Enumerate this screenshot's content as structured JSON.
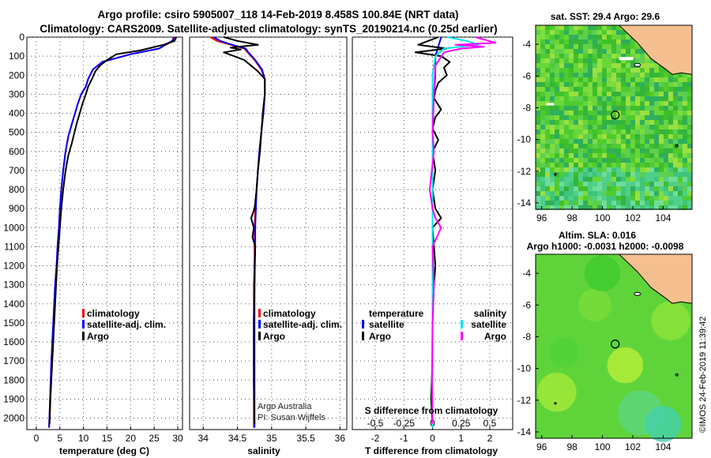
{
  "header": {
    "line1": "Argo profile: csiro 5905007_118 14-Feb-2019 8.458S 100.84E (NRT data)",
    "line2": "Climatology: CARS2009. Satellite-adjusted climatology: synTS_20190214.nc (0.25d earlier)"
  },
  "colors": {
    "climatology": "#ff0000",
    "satellite": "#0000ff",
    "argo": "#000000",
    "sat_salinity": "#00e5ee",
    "argo_salinity_diff": "#ff00ff"
  },
  "chart_data": [
    {
      "type": "line",
      "panel": "temperature",
      "xlabel": "temperature (deg C)",
      "xlim": [
        -2,
        31
      ],
      "ylim": [
        2060,
        0
      ],
      "xticks": [
        0,
        5,
        10,
        15,
        20,
        25,
        30
      ],
      "yticks": [
        0,
        100,
        200,
        300,
        400,
        500,
        600,
        700,
        800,
        900,
        1000,
        1100,
        1200,
        1300,
        1400,
        1500,
        1600,
        1700,
        1800,
        1900,
        2000
      ],
      "legend": [
        "climatology",
        "satellite-adj. clim.",
        "Argo"
      ],
      "series": [
        {
          "name": "climatology",
          "x": [
            29.5,
            29,
            26,
            20,
            14,
            12,
            11,
            10.5,
            9.5,
            8.8,
            8.2,
            7.5,
            6.8,
            6.2,
            5.7,
            5.3,
            5,
            4.8,
            4.5,
            4.3,
            4,
            3.8,
            3.6,
            3.4,
            3.2,
            3,
            2.7
          ],
          "y": [
            0,
            20,
            60,
            90,
            130,
            170,
            220,
            260,
            300,
            350,
            400,
            460,
            520,
            600,
            700,
            800,
            900,
            1000,
            1100,
            1200,
            1300,
            1400,
            1500,
            1600,
            1700,
            1850,
            2050
          ]
        },
        {
          "name": "satellite-adj. clim.",
          "x": [
            29.2,
            28.8,
            26,
            20,
            14,
            12,
            11,
            10.5,
            9.5,
            8.8,
            8.2,
            7.5,
            6.8,
            6.2,
            5.7,
            5.3,
            5,
            4.8,
            4.5,
            4.3,
            4,
            3.8,
            3.6,
            3.4,
            3.2,
            3,
            2.7
          ],
          "y": [
            0,
            20,
            60,
            90,
            130,
            170,
            220,
            260,
            300,
            350,
            400,
            460,
            520,
            600,
            700,
            800,
            900,
            1000,
            1100,
            1200,
            1300,
            1400,
            1500,
            1600,
            1700,
            1850,
            2050
          ]
        },
        {
          "name": "Argo",
          "x": [
            29.7,
            29.3,
            27,
            22,
            17,
            15,
            13.5,
            12.5,
            11.8,
            11,
            10.5,
            9.8,
            9.2,
            8.6,
            8.1,
            7.5,
            6.8,
            6.2,
            5.7,
            5.3,
            5,
            4.7,
            4.4,
            4.2,
            4,
            3.8,
            3.6,
            3.4,
            3.2,
            3,
            2.8
          ],
          "y": [
            0,
            20,
            40,
            70,
            90,
            120,
            150,
            180,
            220,
            260,
            300,
            350,
            400,
            450,
            500,
            560,
            620,
            700,
            800,
            900,
            1000,
            1100,
            1200,
            1300,
            1400,
            1500,
            1600,
            1700,
            1800,
            1900,
            2030
          ]
        }
      ]
    },
    {
      "type": "line",
      "panel": "salinity",
      "xlabel": "salinity",
      "xlim": [
        33.8,
        36.1
      ],
      "ylim": [
        2060,
        0
      ],
      "xticks": [
        34,
        34.5,
        35,
        35.5,
        36
      ],
      "xticklabels": [
        "34",
        "34.5",
        "35",
        "35.5",
        "36"
      ],
      "legend": [
        "climatology",
        "satellite-adj. clim.",
        "Argo"
      ],
      "annotation": [
        "Argo Australia",
        "PI: Susan Wijffels"
      ],
      "series": [
        {
          "name": "climatology",
          "x": [
            34.1,
            34.2,
            34.4,
            34.6,
            34.65,
            34.75,
            34.85,
            34.9,
            34.9,
            34.88,
            34.85,
            34.82,
            34.8,
            34.78,
            34.76,
            34.75,
            34.75,
            34.75,
            34.74,
            34.74,
            34.74,
            34.74
          ],
          "y": [
            0,
            20,
            40,
            60,
            80,
            120,
            170,
            220,
            300,
            400,
            500,
            600,
            700,
            800,
            900,
            1000,
            1100,
            1200,
            1300,
            1500,
            1800,
            2050
          ]
        },
        {
          "name": "satellite-adj. clim.",
          "x": [
            34.15,
            34.25,
            34.42,
            34.62,
            34.66,
            34.76,
            34.86,
            34.9,
            34.9,
            34.88,
            34.85,
            34.82,
            34.8,
            34.78,
            34.77,
            34.76,
            34.76,
            34.75,
            34.75,
            34.75,
            34.75,
            34.75
          ],
          "y": [
            0,
            20,
            40,
            60,
            80,
            120,
            170,
            220,
            300,
            400,
            500,
            600,
            700,
            800,
            900,
            1000,
            1100,
            1200,
            1300,
            1500,
            1800,
            2050
          ]
        },
        {
          "name": "Argo",
          "x": [
            34.3,
            34.5,
            34.8,
            34.4,
            34.55,
            34.3,
            34.45,
            34.6,
            34.7,
            34.8,
            34.9,
            34.9,
            34.87,
            34.85,
            34.83,
            34.8,
            34.78,
            34.75,
            34.7,
            34.74,
            34.72,
            34.76,
            34.75,
            34.74,
            34.74,
            34.75
          ],
          "y": [
            0,
            20,
            40,
            55,
            65,
            80,
            100,
            120,
            150,
            180,
            220,
            300,
            400,
            500,
            600,
            700,
            800,
            900,
            950,
            1000,
            1050,
            1100,
            1300,
            1500,
            1800,
            2030
          ]
        }
      ]
    },
    {
      "type": "line",
      "panel": "difference",
      "xlabel": "T difference from climatology",
      "xlabel_top": "S difference from climatology",
      "xlim": [
        -2.8,
        2.8
      ],
      "ylim": [
        2060,
        0
      ],
      "xticks": [
        -2,
        -1,
        0,
        1,
        2
      ],
      "xticks_top": [
        -0.5,
        -0.25,
        0,
        0.25,
        0.5
      ],
      "xticklabels_top": [
        "-0.5",
        "-0.25",
        "0",
        "0.25",
        "0.5"
      ],
      "legend_temperature_heading": "temperature",
      "legend_salinity_heading": "salinity",
      "legend_temperature": [
        "satellite",
        "Argo"
      ],
      "legend_salinity": [
        "satellite",
        "Argo"
      ],
      "series": [
        {
          "name": "T satellite",
          "x": [
            0.3,
            0.2,
            0.1,
            0.1,
            0.05,
            0,
            0,
            0,
            0,
            0,
            0,
            0
          ],
          "y": [
            0,
            50,
            100,
            200,
            300,
            500,
            800,
            1000,
            1300,
            1600,
            1900,
            2050
          ]
        },
        {
          "name": "T Argo",
          "x": [
            0.2,
            -0.5,
            0.5,
            -0.6,
            0.3,
            0.6,
            0.4,
            0.5,
            0.2,
            0.1,
            0.05,
            0.3,
            0.1,
            0,
            0.2,
            0,
            0.1,
            0,
            0.1,
            0.3,
            0,
            0.1,
            0.05,
            0,
            0,
            -0.05,
            0
          ],
          "y": [
            0,
            40,
            60,
            80,
            100,
            130,
            160,
            200,
            240,
            280,
            320,
            380,
            420,
            480,
            540,
            600,
            700,
            800,
            900,
            950,
            1000,
            1200,
            1300,
            1500,
            1700,
            1900,
            2030
          ]
        },
        {
          "name": "S satellite",
          "x": [
            0.5,
            1.2,
            1.6,
            0.4,
            0.1,
            0,
            0,
            0,
            0,
            0,
            0,
            0
          ],
          "y": [
            0,
            20,
            40,
            60,
            100,
            200,
            400,
            800,
            1200,
            1600,
            1900,
            2050
          ]
        },
        {
          "name": "S Argo",
          "x": [
            1.5,
            2.2,
            0.8,
            1.8,
            1,
            0.4,
            0.1,
            0.05,
            0,
            0.05,
            -0.1,
            0,
            0.1,
            0.3,
            0,
            0.05,
            0,
            -0.02,
            0
          ],
          "y": [
            0,
            30,
            40,
            50,
            60,
            80,
            150,
            300,
            500,
            600,
            800,
            900,
            950,
            1000,
            1100,
            1300,
            1500,
            1800,
            2030
          ]
        }
      ]
    },
    {
      "type": "heatmap",
      "panel": "sst-map",
      "title": "sat. SST: 29.4 Argo: 29.6",
      "xticks": [
        96,
        98,
        100,
        102,
        104
      ],
      "yticks": [
        -4,
        -6,
        -8,
        -10,
        -12,
        -14
      ],
      "xlim": [
        95.6,
        105.9
      ],
      "ylim": [
        -14.4,
        -2.8
      ],
      "argo_position": {
        "lon": 100.84,
        "lat": -8.458
      }
    },
    {
      "type": "heatmap",
      "panel": "sla-map",
      "title": "Altim. SLA: 0.016",
      "subtitle": "Argo h1000: -0.0031 h2000: -0.0098",
      "xticks": [
        96,
        98,
        100,
        102,
        104
      ],
      "yticks": [
        -4,
        -6,
        -8,
        -10,
        -12,
        -14
      ],
      "xlim": [
        95.6,
        105.9
      ],
      "ylim": [
        -14.4,
        -2.8
      ],
      "argo_position": {
        "lon": 100.84,
        "lat": -8.458
      }
    }
  ],
  "footer": {
    "stamp": "©IMOS 24-Feb-2019 11:39:42"
  }
}
